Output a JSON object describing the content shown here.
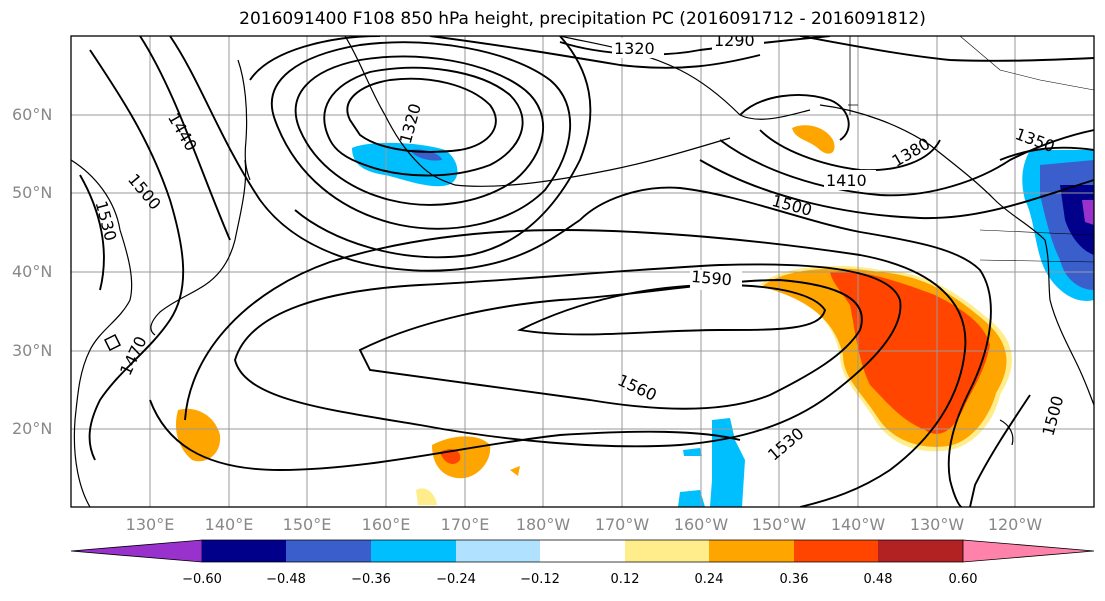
{
  "title": "2016091400 F108 850 hPa height, precipitation PC (2016091712 - 2016091812)",
  "lat_labels": [
    "60°N",
    "50°N",
    "40°N",
    "30°N",
    "20°N"
  ],
  "lon_labels": [
    "130°E",
    "140°E",
    "150°E",
    "160°E",
    "170°E",
    "180°W",
    "170°W",
    "160°W",
    "150°W",
    "140°W",
    "130°W",
    "120°W"
  ],
  "colorbar": {
    "tick_labels": [
      "−0.60",
      "−0.48",
      "−0.36",
      "−0.24",
      "−0.12",
      "0.12",
      "0.24",
      "0.36",
      "0.48",
      "0.60"
    ],
    "colors": [
      "#9932cc",
      "#00008b",
      "#3a5fcd",
      "#00bfff",
      "#b0e2ff",
      "#ffffff",
      "#ffec8b",
      "#ffa500",
      "#ff4500",
      "#b22222",
      "#ff82ab"
    ]
  },
  "contour_labels": [
    "1320",
    "1290",
    "1320",
    "1440",
    "1500",
    "1530",
    "1470",
    "1350",
    "1410",
    "1500",
    "1590",
    "1560",
    "1530",
    "1500",
    "1380"
  ]
}
